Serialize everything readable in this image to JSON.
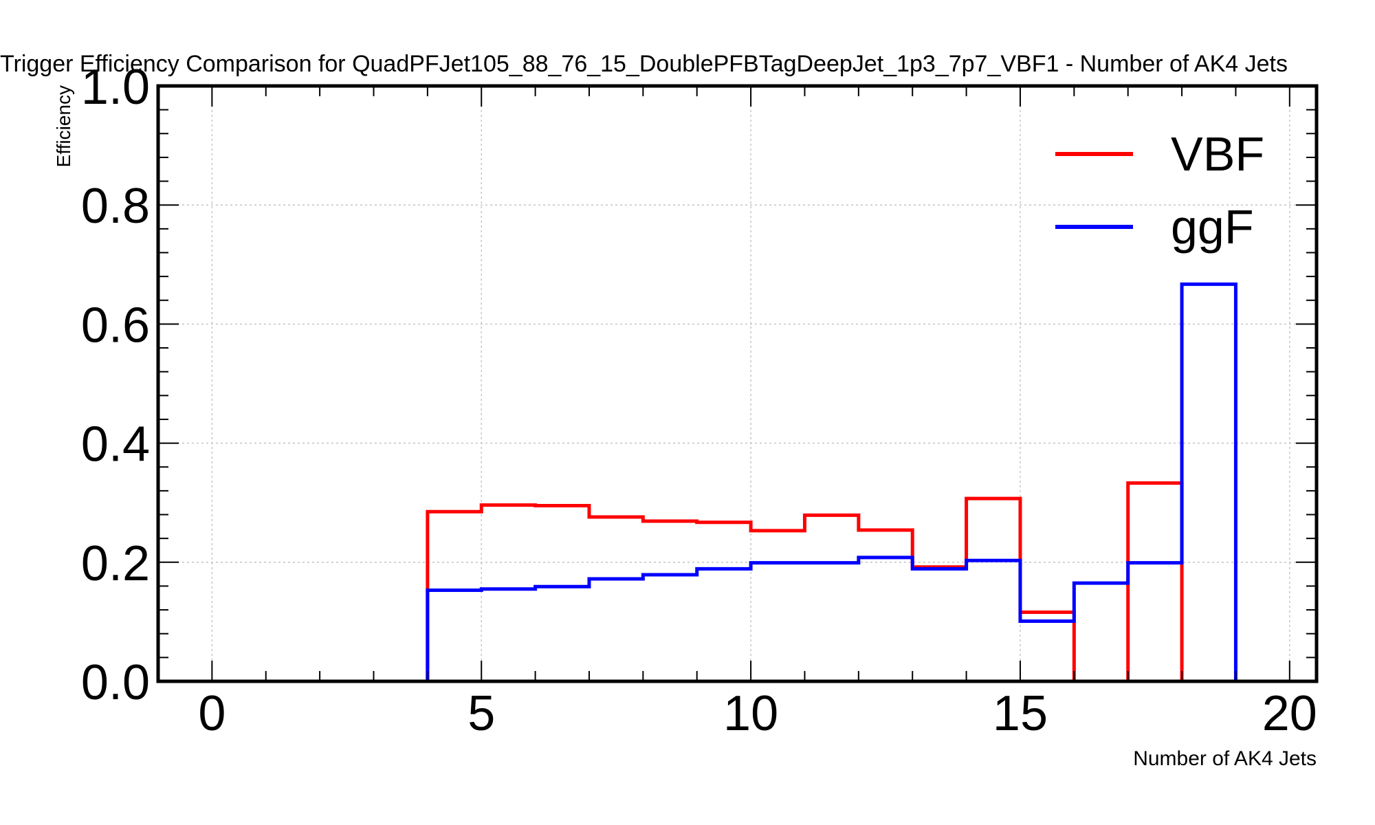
{
  "chart_data": {
    "type": "line",
    "step": true,
    "title": "Trigger Efficiency Comparison for QuadPFJet105_88_76_15_DoublePFBTagDeepJet_1p3_7p7_VBF1 - Number of AK4 Jets",
    "xlabel": "Number of AK4 Jets",
    "ylabel": "Efficiency",
    "xlim": [
      -1,
      20.5
    ],
    "ylim": [
      0,
      1.0
    ],
    "xticks": [
      "0",
      "5",
      "10",
      "15",
      "20"
    ],
    "yticks": [
      "0.0",
      "0.2",
      "0.4",
      "0.6",
      "0.8",
      "1.0"
    ],
    "grid": true,
    "legend": "top-right",
    "bin_edges": [
      0,
      1,
      2,
      3,
      4,
      5,
      6,
      7,
      8,
      9,
      10,
      11,
      12,
      13,
      14,
      15,
      16,
      17,
      18,
      19,
      20
    ],
    "series": [
      {
        "name": "VBF",
        "color": "#ff0000",
        "values": [
          0,
          0,
          0,
          0,
          0.285,
          0.296,
          0.295,
          0.276,
          0.269,
          0.267,
          0.253,
          0.279,
          0.254,
          0.192,
          0.307,
          0.116,
          0,
          0.333,
          0,
          0
        ]
      },
      {
        "name": "ggF",
        "color": "#0000ff",
        "values": [
          0,
          0,
          0,
          0,
          0.153,
          0.155,
          0.159,
          0.172,
          0.179,
          0.189,
          0.199,
          0.199,
          0.208,
          0.189,
          0.203,
          0.101,
          0.165,
          0.199,
          0.667,
          0
        ]
      }
    ]
  }
}
